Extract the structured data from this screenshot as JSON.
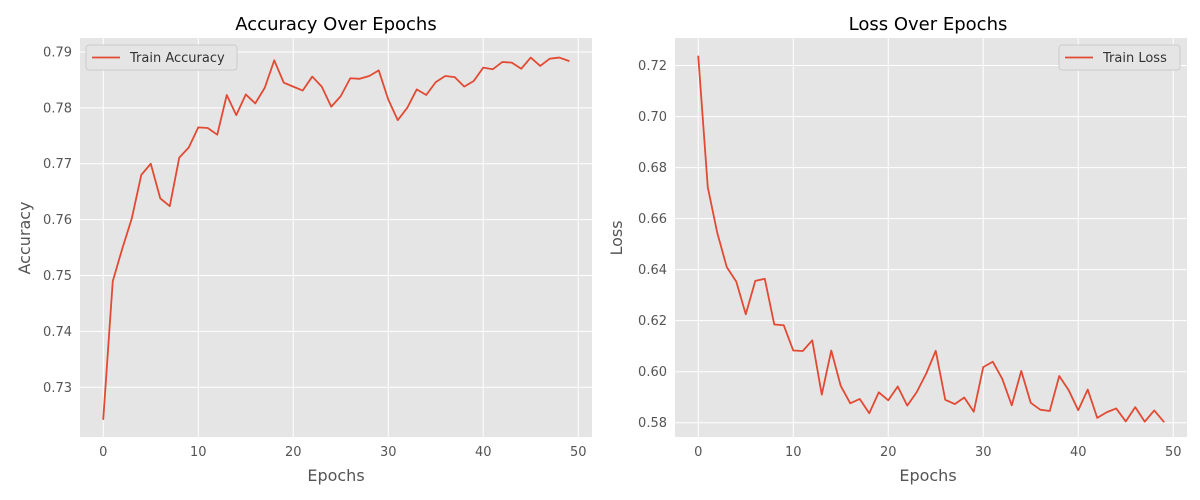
{
  "colors": {
    "plot_bg": "#e5e5e5",
    "grid": "#ffffff",
    "line": "#e24a33",
    "text": "#555555",
    "title": "#000000"
  },
  "chart_data": [
    {
      "type": "line",
      "title": "Accuracy Over Epochs",
      "xlabel": "Epochs",
      "ylabel": "Accuracy",
      "xlim": [
        -2.45,
        51.45
      ],
      "ylim": [
        0.7211,
        0.7925
      ],
      "xticks": [
        0,
        10,
        20,
        30,
        40,
        50
      ],
      "yticks": [
        0.73,
        0.74,
        0.75,
        0.76,
        0.77,
        0.78,
        0.79
      ],
      "xtick_labels": [
        "0",
        "10",
        "20",
        "30",
        "40",
        "50"
      ],
      "ytick_labels": [
        "0.73",
        "0.74",
        "0.75",
        "0.76",
        "0.77",
        "0.78",
        "0.79"
      ],
      "grid": true,
      "legend_position": "top-left",
      "series": [
        {
          "name": "Train Accuracy",
          "color": "#e24a33",
          "x": [
            0,
            1,
            2,
            3,
            4,
            5,
            6,
            7,
            8,
            9,
            10,
            11,
            12,
            13,
            14,
            15,
            16,
            17,
            18,
            19,
            20,
            21,
            22,
            23,
            24,
            25,
            26,
            27,
            28,
            29,
            30,
            31,
            32,
            33,
            34,
            35,
            36,
            37,
            38,
            39,
            40,
            41,
            42,
            43,
            44,
            45,
            46,
            47,
            48,
            49
          ],
          "values": [
            0.7243,
            0.749,
            0.7548,
            0.7602,
            0.768,
            0.77,
            0.7638,
            0.7624,
            0.7711,
            0.7729,
            0.7765,
            0.7764,
            0.7752,
            0.7823,
            0.7787,
            0.7824,
            0.7808,
            0.7836,
            0.7885,
            0.7845,
            0.7838,
            0.7831,
            0.7856,
            0.7838,
            0.7802,
            0.7821,
            0.7853,
            0.7852,
            0.7857,
            0.7867,
            0.7815,
            0.7778,
            0.78,
            0.7833,
            0.7823,
            0.7846,
            0.7857,
            0.7855,
            0.7838,
            0.7848,
            0.7872,
            0.7869,
            0.7882,
            0.7881,
            0.787,
            0.789,
            0.7875,
            0.7888,
            0.789,
            0.7884
          ]
        }
      ]
    },
    {
      "type": "line",
      "title": "Loss Over Epochs",
      "xlabel": "Epochs",
      "ylabel": "Loss",
      "xlim": [
        -2.45,
        51.45
      ],
      "ylim": [
        0.5744,
        0.7308
      ],
      "xticks": [
        0,
        10,
        20,
        30,
        40,
        50
      ],
      "yticks": [
        0.58,
        0.6,
        0.62,
        0.64,
        0.66,
        0.68,
        0.7,
        0.72
      ],
      "xtick_labels": [
        "0",
        "10",
        "20",
        "30",
        "40",
        "50"
      ],
      "ytick_labels": [
        "0.58",
        "0.60",
        "0.62",
        "0.64",
        "0.66",
        "0.68",
        "0.70",
        "0.72"
      ],
      "grid": true,
      "legend_position": "top-right",
      "series": [
        {
          "name": "Train Loss",
          "color": "#e24a33",
          "x": [
            0,
            1,
            2,
            3,
            4,
            5,
            6,
            7,
            8,
            9,
            10,
            11,
            12,
            13,
            14,
            15,
            16,
            17,
            18,
            19,
            20,
            21,
            22,
            23,
            24,
            25,
            26,
            27,
            28,
            29,
            30,
            31,
            32,
            33,
            34,
            35,
            36,
            37,
            38,
            39,
            40,
            41,
            42,
            43,
            44,
            45,
            46,
            47,
            48,
            49
          ],
          "values": [
            0.7236,
            0.6723,
            0.6544,
            0.641,
            0.6353,
            0.6225,
            0.6356,
            0.6364,
            0.6185,
            0.6182,
            0.6083,
            0.6081,
            0.6123,
            0.591,
            0.6083,
            0.5944,
            0.5876,
            0.5893,
            0.5837,
            0.5919,
            0.5888,
            0.5942,
            0.5867,
            0.592,
            0.5993,
            0.6082,
            0.589,
            0.5873,
            0.5899,
            0.5843,
            0.6018,
            0.6039,
            0.5972,
            0.5868,
            0.6003,
            0.5878,
            0.5851,
            0.5846,
            0.5983,
            0.5927,
            0.5849,
            0.593,
            0.5819,
            0.5841,
            0.5856,
            0.5805,
            0.5861,
            0.5804,
            0.5848,
            0.5804
          ]
        }
      ]
    }
  ]
}
